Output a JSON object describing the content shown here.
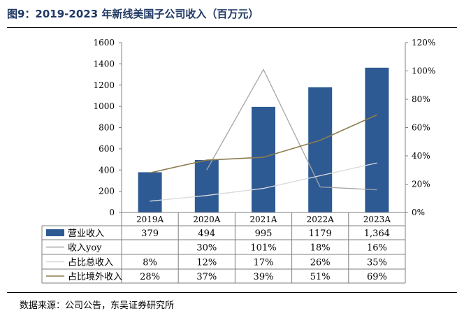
{
  "header": {
    "title": "图9：2019-2023 年新线美国子公司收入（百万元）"
  },
  "footer": {
    "source": "数据来源：公司公告，东吴证券研究所"
  },
  "colors": {
    "bar": "#2e5a94",
    "yoy_line": "#a6a6a6",
    "share_total_line": "#d9d9d9",
    "share_overseas_line": "#8b7d4f"
  },
  "chart_data": {
    "type": "bar+line",
    "title": "2019-2023 年新线美国子公司收入（百万元）",
    "categories": [
      "2019A",
      "2020A",
      "2021A",
      "2022A",
      "2023A"
    ],
    "left_axis": {
      "ylim": [
        0,
        1600
      ],
      "ticks": [
        "0",
        "200",
        "400",
        "600",
        "800",
        "1000",
        "1200",
        "1400",
        "1600"
      ]
    },
    "right_axis": {
      "ylim": [
        0,
        120
      ],
      "ticks": [
        "0%",
        "20%",
        "40%",
        "60%",
        "80%",
        "100%",
        "120%"
      ]
    },
    "series": [
      {
        "name": "营业收入",
        "kind": "bar",
        "axis": "left",
        "values": [
          379,
          494,
          995,
          1179,
          1364
        ],
        "labels": [
          "379",
          "494",
          "995",
          "1179",
          "1,364"
        ]
      },
      {
        "name": "收入yoy",
        "kind": "line",
        "axis": "right",
        "values": [
          null,
          30,
          101,
          18,
          16
        ],
        "labels": [
          "",
          "30%",
          "101%",
          "18%",
          "16%"
        ]
      },
      {
        "name": "占比总收入",
        "kind": "line",
        "axis": "right",
        "values": [
          8,
          12,
          17,
          26,
          35
        ],
        "labels": [
          "8%",
          "12%",
          "17%",
          "26%",
          "35%"
        ]
      },
      {
        "name": "占比境外收入",
        "kind": "line",
        "axis": "right",
        "values": [
          28,
          37,
          39,
          51,
          69
        ],
        "labels": [
          "28%",
          "37%",
          "39%",
          "51%",
          "69%"
        ]
      }
    ]
  }
}
